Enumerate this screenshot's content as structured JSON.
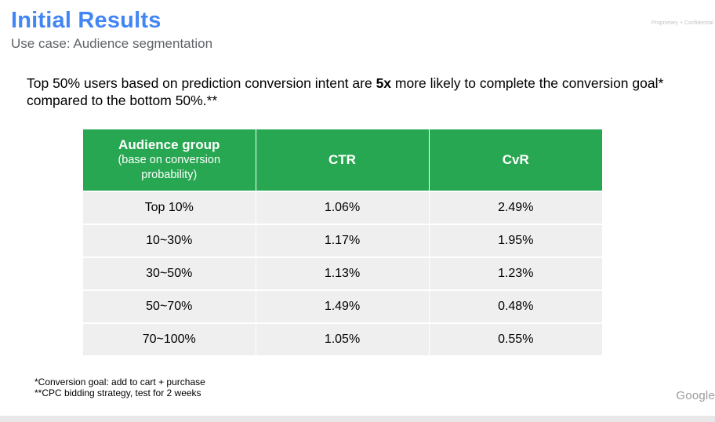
{
  "header": {
    "title": "Initial Results",
    "subtitle": "Use case: Audience segmentation",
    "confidential": "Proprietary + Confidential"
  },
  "summary": {
    "part1": "Top 50% users based on prediction conversion intent are ",
    "bold": "5x",
    "part2": " more likely to complete the conversion goal* compared to the bottom 50%.**"
  },
  "table": {
    "header_bg": "#27a752",
    "header": {
      "group_title": "Audience group",
      "group_sub1": "(base on conversion",
      "group_sub2": "probability)",
      "ctr": "CTR",
      "cvr": "CvR"
    },
    "rows": [
      {
        "group": "Top 10%",
        "ctr": "1.06%",
        "cvr": "2.49%"
      },
      {
        "group": "10~30%",
        "ctr": "1.17%",
        "cvr": "1.95%"
      },
      {
        "group": "30~50%",
        "ctr": "1.13%",
        "cvr": "1.23%"
      },
      {
        "group": "50~70%",
        "ctr": "1.49%",
        "cvr": "0.48%"
      },
      {
        "group": "70~100%",
        "ctr": "1.05%",
        "cvr": "0.55%"
      }
    ]
  },
  "footnotes": {
    "line1": "*Conversion goal: add to cart + purchase",
    "line2": "**CPC bidding strategy, test for 2 weeks"
  },
  "brand": {
    "logo_text": "Google"
  }
}
